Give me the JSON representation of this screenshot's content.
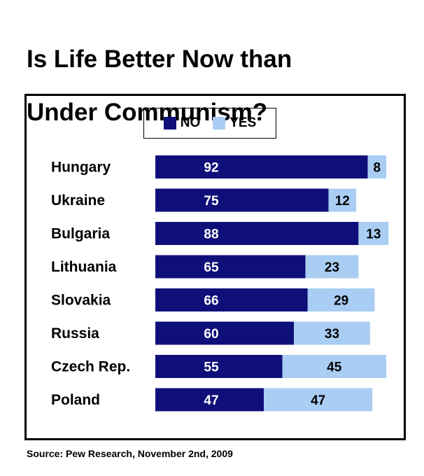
{
  "title_line1": "Is Life Better Now than",
  "title_line2": "Under Communism?",
  "source": "Source: Pew Research, November 2nd, 2009",
  "legend": [
    {
      "label": "NO",
      "color": "#0f0f7a"
    },
    {
      "label": "YES",
      "color": "#a9cdf3"
    }
  ],
  "chart_data": {
    "type": "bar",
    "orientation": "horizontal",
    "stacked": true,
    "title": "Is Life Better Now than Under Communism?",
    "categories": [
      "Hungary",
      "Ukraine",
      "Bulgaria",
      "Lithuania",
      "Slovakia",
      "Russia",
      "Czech Rep.",
      "Poland"
    ],
    "series": [
      {
        "name": "NO",
        "color": "#0f0f7a",
        "values": [
          92,
          75,
          88,
          65,
          66,
          60,
          55,
          47
        ]
      },
      {
        "name": "YES",
        "color": "#a9cdf3",
        "values": [
          8,
          12,
          13,
          23,
          29,
          33,
          45,
          47
        ]
      }
    ],
    "xlim": [
      0,
      100
    ],
    "grid": false,
    "legend_position": "top"
  }
}
